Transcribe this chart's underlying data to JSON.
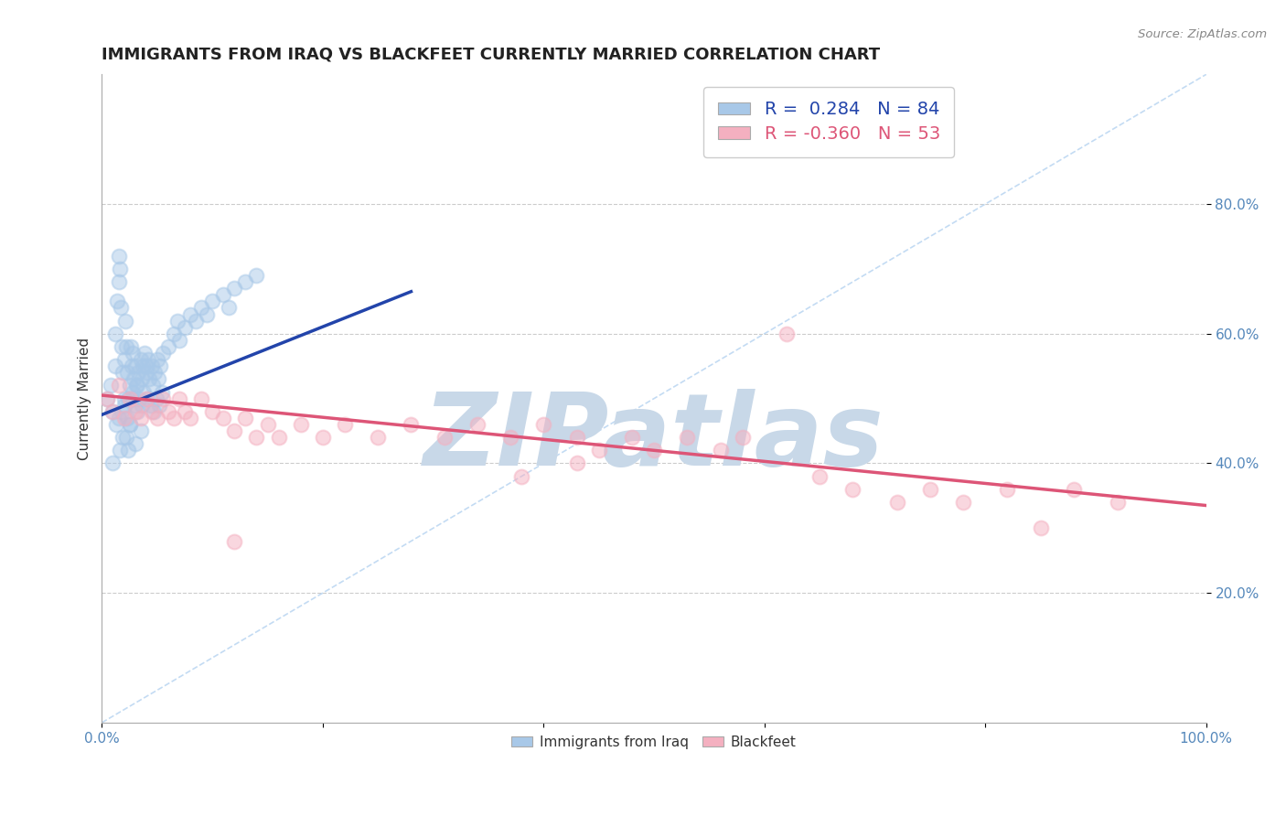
{
  "title": "IMMIGRANTS FROM IRAQ VS BLACKFEET CURRENTLY MARRIED CORRELATION CHART",
  "source_text": "Source: ZipAtlas.com",
  "ylabel": "Currently Married",
  "legend_label_blue": "Immigrants from Iraq",
  "legend_label_pink": "Blackfeet",
  "R_blue": 0.284,
  "N_blue": 84,
  "R_pink": -0.36,
  "N_pink": 53,
  "xlim": [
    0.0,
    1.0
  ],
  "ylim": [
    0.0,
    1.0
  ],
  "xticks": [
    0.0,
    0.2,
    0.4,
    0.6,
    0.8,
    1.0
  ],
  "xtick_labels": [
    "0.0%",
    "",
    "",
    "",
    "",
    "100.0%"
  ],
  "yticks": [
    0.2,
    0.4,
    0.6,
    0.8
  ],
  "ytick_labels": [
    "20.0%",
    "40.0%",
    "60.0%",
    "80.0%"
  ],
  "blue_scatter_x": [
    0.005,
    0.008,
    0.01,
    0.012,
    0.012,
    0.014,
    0.015,
    0.015,
    0.016,
    0.017,
    0.018,
    0.019,
    0.02,
    0.02,
    0.021,
    0.022,
    0.023,
    0.024,
    0.025,
    0.025,
    0.026,
    0.027,
    0.028,
    0.028,
    0.029,
    0.03,
    0.03,
    0.031,
    0.032,
    0.033,
    0.034,
    0.035,
    0.036,
    0.036,
    0.037,
    0.038,
    0.039,
    0.04,
    0.041,
    0.042,
    0.043,
    0.044,
    0.045,
    0.046,
    0.047,
    0.048,
    0.049,
    0.05,
    0.051,
    0.052,
    0.053,
    0.054,
    0.055,
    0.06,
    0.065,
    0.068,
    0.07,
    0.075,
    0.08,
    0.085,
    0.09,
    0.095,
    0.1,
    0.11,
    0.115,
    0.12,
    0.13,
    0.14,
    0.015,
    0.022,
    0.025,
    0.03,
    0.035,
    0.018,
    0.016,
    0.019,
    0.023,
    0.028,
    0.013,
    0.02,
    0.032,
    0.04,
    0.024,
    0.01
  ],
  "blue_scatter_y": [
    0.5,
    0.52,
    0.48,
    0.55,
    0.6,
    0.65,
    0.68,
    0.72,
    0.7,
    0.64,
    0.58,
    0.54,
    0.5,
    0.56,
    0.62,
    0.58,
    0.54,
    0.5,
    0.46,
    0.52,
    0.58,
    0.55,
    0.51,
    0.57,
    0.53,
    0.49,
    0.55,
    0.52,
    0.48,
    0.54,
    0.5,
    0.56,
    0.53,
    0.49,
    0.55,
    0.51,
    0.57,
    0.54,
    0.5,
    0.56,
    0.53,
    0.49,
    0.55,
    0.52,
    0.48,
    0.54,
    0.5,
    0.56,
    0.53,
    0.49,
    0.55,
    0.51,
    0.57,
    0.58,
    0.6,
    0.62,
    0.59,
    0.61,
    0.63,
    0.62,
    0.64,
    0.63,
    0.65,
    0.66,
    0.64,
    0.67,
    0.68,
    0.69,
    0.47,
    0.44,
    0.46,
    0.43,
    0.45,
    0.48,
    0.42,
    0.44,
    0.47,
    0.5,
    0.46,
    0.49,
    0.52,
    0.55,
    0.42,
    0.4
  ],
  "pink_scatter_x": [
    0.005,
    0.01,
    0.015,
    0.02,
    0.025,
    0.03,
    0.035,
    0.04,
    0.045,
    0.05,
    0.055,
    0.06,
    0.065,
    0.07,
    0.075,
    0.08,
    0.09,
    0.1,
    0.11,
    0.12,
    0.13,
    0.14,
    0.15,
    0.16,
    0.18,
    0.2,
    0.22,
    0.25,
    0.28,
    0.31,
    0.34,
    0.37,
    0.4,
    0.43,
    0.45,
    0.48,
    0.5,
    0.53,
    0.56,
    0.58,
    0.62,
    0.65,
    0.68,
    0.72,
    0.75,
    0.78,
    0.82,
    0.85,
    0.88,
    0.92,
    0.43,
    0.12,
    0.38
  ],
  "pink_scatter_y": [
    0.5,
    0.48,
    0.52,
    0.47,
    0.5,
    0.48,
    0.47,
    0.5,
    0.48,
    0.47,
    0.5,
    0.48,
    0.47,
    0.5,
    0.48,
    0.47,
    0.5,
    0.48,
    0.47,
    0.45,
    0.47,
    0.44,
    0.46,
    0.44,
    0.46,
    0.44,
    0.46,
    0.44,
    0.46,
    0.44,
    0.46,
    0.44,
    0.46,
    0.44,
    0.42,
    0.44,
    0.42,
    0.44,
    0.42,
    0.44,
    0.6,
    0.38,
    0.36,
    0.34,
    0.36,
    0.34,
    0.36,
    0.3,
    0.36,
    0.34,
    0.4,
    0.28,
    0.38
  ],
  "blue_line_x": [
    0.0,
    0.28
  ],
  "blue_line_y": [
    0.475,
    0.665
  ],
  "pink_line_x": [
    0.0,
    1.0
  ],
  "pink_line_y": [
    0.505,
    0.335
  ],
  "diag_line_x": [
    0.0,
    1.0
  ],
  "diag_line_y": [
    0.0,
    1.0
  ],
  "watermark_text": "ZIPatlas",
  "watermark_color": "#c8d8e8",
  "background_color": "#ffffff",
  "blue_color": "#a8c8e8",
  "pink_color": "#f4b0c0",
  "blue_line_color": "#2244aa",
  "pink_line_color": "#dd5577",
  "diag_line_color": "#aaccee",
  "title_fontsize": 13,
  "axis_label_fontsize": 11,
  "tick_fontsize": 11,
  "legend_fontsize": 14
}
